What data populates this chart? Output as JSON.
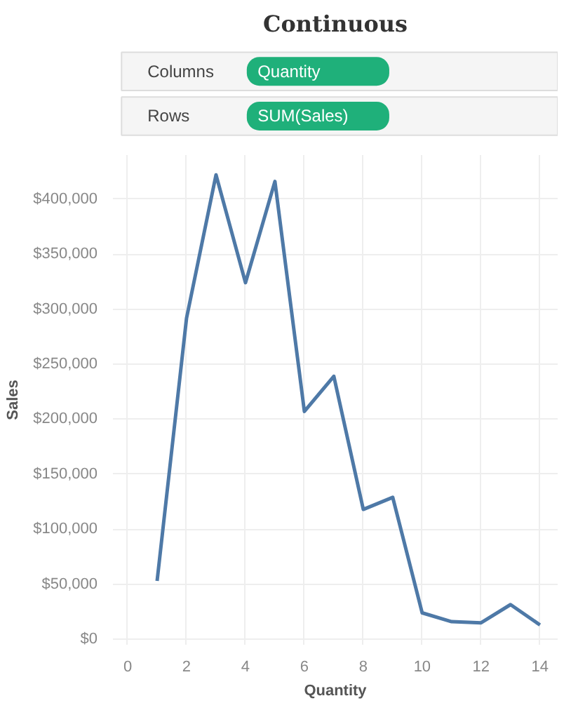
{
  "chart_data": {
    "type": "line",
    "title": "Continuous",
    "xlabel": "Quantity",
    "ylabel": "Sales",
    "annotations": [
      "Columns",
      "Quantity",
      "Rows",
      "SUM(Sales)"
    ],
    "x": [
      1,
      2,
      3,
      4,
      5,
      6,
      7,
      8,
      9,
      10,
      11,
      12,
      13,
      14
    ],
    "series": [
      {
        "color": "#4e79a7",
        "values": [
          53000,
          292000,
          422000,
          324000,
          416000,
          207000,
          239000,
          118000,
          129000,
          24000,
          16000,
          15000,
          31500,
          13000
        ]
      }
    ],
    "xlim": [
      -0.5,
      14.6
    ],
    "ylim": [
      -5000,
      440000
    ],
    "xticks": [
      0,
      2,
      4,
      6,
      8,
      10,
      12,
      14
    ],
    "yticks": [
      {
        "value": 0,
        "label": "$0"
      },
      {
        "value": 50000,
        "label": "$50,000"
      },
      {
        "value": 100000,
        "label": "$100,000"
      },
      {
        "value": 150000,
        "label": "$150,000"
      },
      {
        "value": 200000,
        "label": "$200,000"
      },
      {
        "value": 250000,
        "label": "$250,000"
      },
      {
        "value": 300000,
        "label": "$300,000"
      },
      {
        "value": 350000,
        "label": "$350,000"
      },
      {
        "value": 400000,
        "label": "$400,000"
      }
    ],
    "grid": true,
    "marker": "none",
    "line_style": "solid"
  }
}
